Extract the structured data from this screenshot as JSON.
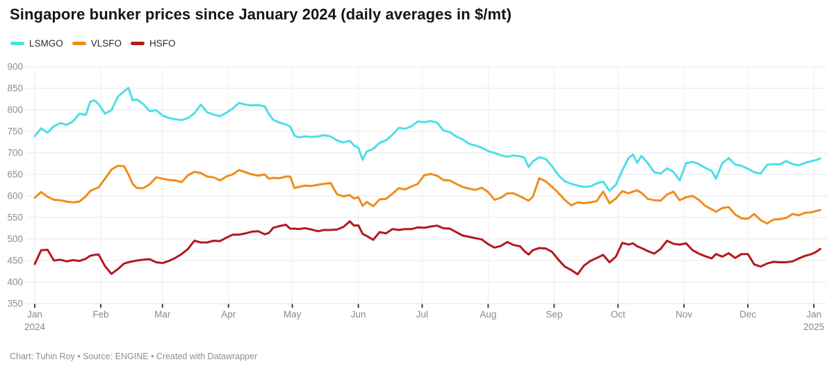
{
  "header": {
    "title": "Singapore bunker prices since January 2024 (daily averages in $/mt)"
  },
  "footer": {
    "text": "Chart: Tuhin Roy • Source: ENGINE • Created with Datawrapper"
  },
  "chart_data": {
    "type": "line",
    "title": "Singapore bunker prices since January 2024 (daily averages in $/mt)",
    "unit": "$/mt",
    "grid": "on",
    "legend_position": "top-left",
    "x_axis": {
      "start": "Jan 2024",
      "end": "Jan 2025",
      "ticks": [
        {
          "label": "Jan",
          "sublabel": "2024",
          "day": 0
        },
        {
          "label": "Feb",
          "day": 31
        },
        {
          "label": "Mar",
          "day": 60
        },
        {
          "label": "Apr",
          "day": 91
        },
        {
          "label": "May",
          "day": 121
        },
        {
          "label": "Jun",
          "day": 152
        },
        {
          "label": "Jul",
          "day": 182
        },
        {
          "label": "Aug",
          "day": 213
        },
        {
          "label": "Sep",
          "day": 244
        },
        {
          "label": "Oct",
          "day": 274
        },
        {
          "label": "Nov",
          "day": 305
        },
        {
          "label": "Dec",
          "day": 335
        },
        {
          "label": "Jan",
          "sublabel": "2025",
          "day": 366
        }
      ]
    },
    "y_axis": {
      "min": 350,
      "max": 900,
      "step": 50,
      "ticks": [
        900,
        850,
        800,
        750,
        700,
        650,
        600,
        550,
        500,
        450,
        400,
        350
      ]
    },
    "x_days": [
      0,
      3,
      6,
      9,
      12,
      15,
      18,
      21,
      24,
      26,
      28,
      30,
      33,
      36,
      39,
      42,
      44,
      46,
      48,
      51,
      54,
      57,
      60,
      63,
      66,
      69,
      72,
      75,
      78,
      81,
      84,
      87,
      90,
      93,
      96,
      99,
      102,
      105,
      108,
      110,
      112,
      115,
      118,
      120,
      122,
      124,
      127,
      130,
      133,
      136,
      139,
      142,
      145,
      148,
      150,
      152,
      154,
      156,
      159,
      162,
      165,
      168,
      171,
      174,
      177,
      180,
      183,
      186,
      189,
      192,
      195,
      198,
      201,
      204,
      207,
      210,
      213,
      216,
      219,
      222,
      225,
      228,
      230,
      232,
      234,
      237,
      240,
      243,
      246,
      249,
      252,
      255,
      258,
      261,
      264,
      267,
      270,
      273,
      276,
      279,
      281,
      283,
      285,
      288,
      291,
      294,
      297,
      300,
      303,
      306,
      309,
      312,
      315,
      318,
      320,
      323,
      326,
      329,
      332,
      335,
      338,
      341,
      344,
      347,
      350,
      353,
      356,
      359,
      362,
      365,
      367,
      369
    ],
    "series": [
      {
        "name": "LSMGO",
        "color": "#4ddfe6",
        "values": [
          739,
          757,
          747,
          762,
          769,
          765,
          773,
          791,
          788,
          818,
          822,
          813,
          791,
          799,
          830,
          843,
          851,
          822,
          824,
          813,
          797,
          799,
          787,
          781,
          778,
          776,
          781,
          792,
          812,
          794,
          789,
          785,
          793,
          803,
          816,
          812,
          810,
          811,
          808,
          790,
          777,
          770,
          766,
          761,
          740,
          736,
          738,
          737,
          738,
          741,
          738,
          729,
          724,
          728,
          717,
          712,
          684,
          703,
          709,
          723,
          729,
          742,
          758,
          756,
          762,
          773,
          771,
          774,
          770,
          752,
          748,
          738,
          731,
          721,
          717,
          712,
          704,
          700,
          694,
          691,
          694,
          692,
          689,
          667,
          680,
          690,
          686,
          669,
          648,
          634,
          628,
          624,
          621,
          622,
          629,
          633,
          612,
          626,
          659,
          688,
          696,
          677,
          693,
          676,
          655,
          652,
          664,
          656,
          636,
          676,
          679,
          674,
          665,
          658,
          640,
          676,
          688,
          673,
          670,
          663,
          655,
          652,
          672,
          674,
          673,
          681,
          674,
          671,
          677,
          681,
          683,
          687
        ]
      },
      {
        "name": "VLSFO",
        "color": "#f08c1c",
        "values": [
          596,
          609,
          598,
          591,
          590,
          587,
          585,
          587,
          599,
          611,
          616,
          620,
          640,
          661,
          670,
          669,
          650,
          628,
          618,
          618,
          627,
          643,
          640,
          637,
          636,
          632,
          648,
          656,
          653,
          645,
          643,
          636,
          645,
          650,
          660,
          655,
          650,
          647,
          650,
          640,
          642,
          641,
          645,
          645,
          618,
          621,
          624,
          623,
          626,
          628,
          630,
          604,
          599,
          602,
          594,
          597,
          577,
          586,
          576,
          592,
          593,
          605,
          618,
          615,
          622,
          628,
          648,
          651,
          647,
          637,
          636,
          628,
          621,
          617,
          614,
          619,
          609,
          591,
          596,
          606,
          606,
          599,
          594,
          589,
          598,
          641,
          634,
          621,
          607,
          591,
          578,
          585,
          583,
          585,
          588,
          610,
          583,
          594,
          611,
          606,
          610,
          613,
          607,
          593,
          590,
          589,
          603,
          610,
          590,
          597,
          600,
          591,
          577,
          569,
          563,
          572,
          574,
          557,
          548,
          547,
          558,
          544,
          536,
          545,
          546,
          549,
          558,
          555,
          561,
          562,
          565,
          567
        ]
      },
      {
        "name": "HSFO",
        "color": "#b2191e",
        "values": [
          442,
          474,
          475,
          450,
          452,
          448,
          451,
          449,
          454,
          461,
          463,
          464,
          437,
          419,
          430,
          443,
          446,
          448,
          450,
          452,
          453,
          446,
          444,
          449,
          456,
          465,
          477,
          496,
          492,
          492,
          496,
          495,
          503,
          510,
          510,
          513,
          517,
          518,
          511,
          514,
          526,
          530,
          533,
          524,
          524,
          523,
          525,
          522,
          518,
          521,
          521,
          522,
          528,
          541,
          531,
          532,
          512,
          507,
          498,
          516,
          513,
          523,
          521,
          523,
          523,
          527,
          526,
          529,
          531,
          525,
          524,
          516,
          508,
          505,
          502,
          499,
          488,
          480,
          484,
          493,
          486,
          483,
          472,
          464,
          474,
          479,
          478,
          470,
          452,
          436,
          428,
          418,
          438,
          449,
          456,
          463,
          446,
          459,
          491,
          487,
          490,
          483,
          479,
          472,
          466,
          477,
          496,
          489,
          487,
          490,
          474,
          466,
          460,
          455,
          465,
          459,
          467,
          456,
          465,
          465,
          441,
          436,
          443,
          447,
          446,
          446,
          448,
          455,
          461,
          465,
          470,
          477
        ]
      }
    ]
  }
}
